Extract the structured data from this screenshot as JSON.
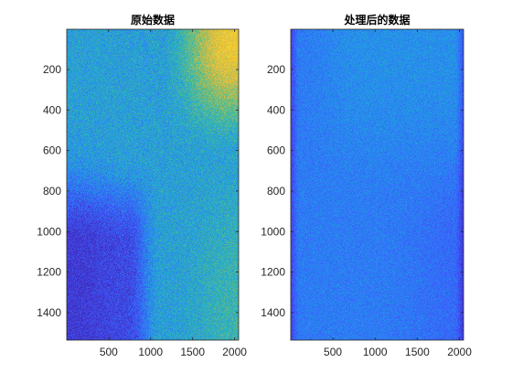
{
  "chart_data": [
    {
      "type": "heatmap",
      "title": "原始数据",
      "xlabel": "",
      "ylabel": "",
      "xlim": [
        1,
        2048
      ],
      "ylim": [
        1,
        1536
      ],
      "y_reversed": true,
      "x_ticks": [
        500,
        1000,
        1500,
        2000
      ],
      "y_ticks": [
        200,
        400,
        600,
        800,
        1000,
        1200,
        1400
      ],
      "colormap": "parula",
      "colors": [
        "#3e26a8",
        "#4743f8",
        "#2d77fb",
        "#1ea8dd",
        "#35c195",
        "#b7bd4e",
        "#fcba3d",
        "#f9e021"
      ],
      "grid": false,
      "description_of_field": {
        "hot_region": {
          "x_range": [
            1300,
            2048
          ],
          "y_range": [
            1,
            550
          ],
          "level": 0.8
        },
        "dark_region": {
          "x_range": [
            1,
            1000
          ],
          "y_range": [
            700,
            1536
          ],
          "level": 0.15
        },
        "background_level": 0.45
      }
    },
    {
      "type": "heatmap",
      "title": "处理后的数据",
      "xlabel": "",
      "ylabel": "",
      "xlim": [
        1,
        2048
      ],
      "ylim": [
        1,
        1536
      ],
      "y_reversed": true,
      "x_ticks": [
        500,
        1000,
        1500,
        2000
      ],
      "y_ticks": [
        200,
        400,
        600,
        800,
        1000,
        1200,
        1400
      ],
      "colormap": "parula",
      "colors": [
        "#3e26a8",
        "#4743f8",
        "#2d77fb",
        "#1ea8dd",
        "#35c195",
        "#b7bd4e",
        "#fcba3d",
        "#f9e021"
      ],
      "grid": false,
      "description_of_field": {
        "background_level": 0.3,
        "left_band": {
          "x_range": [
            1,
            100
          ],
          "level": 0.12
        },
        "right_band": {
          "x_range": [
            1950,
            2048
          ],
          "level": 0.12
        }
      }
    }
  ]
}
